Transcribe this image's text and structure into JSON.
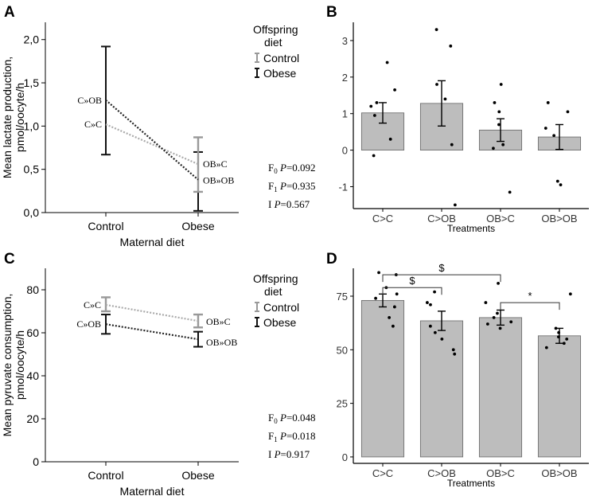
{
  "colors": {
    "control": "#999999",
    "obese": "#111111",
    "bar_fill": "#bdbdbd",
    "bar_stroke": "#666666",
    "axis": "#000000"
  },
  "chart_data": [
    {
      "panel": "A",
      "type": "line",
      "ylabel": "Mean lactate production, pmol/oocyte/h",
      "xlabel": "Maternal diet",
      "categories": [
        "Control",
        "Obese"
      ],
      "ylim": [
        0,
        2.2
      ],
      "yticks": [
        0,
        0.5,
        1,
        1.5,
        2
      ],
      "ytick_labels": [
        "0,0",
        "0,5",
        "1,0",
        "1,5",
        "2,0"
      ],
      "legend": {
        "title": "Offspring diet",
        "items": [
          "Control",
          "Obese"
        ]
      },
      "series": [
        {
          "name": "Control",
          "labels": [
            "C»C",
            "OB»C"
          ],
          "values": [
            1.02,
            0.56
          ]
        },
        {
          "name": "Obese",
          "labels": [
            "C»OB",
            "OB»OB"
          ],
          "values": [
            1.3,
            0.38
          ]
        }
      ],
      "error_bars": [
        {
          "group": "Control",
          "low": 0.67,
          "high": 1.92
        },
        {
          "group": "Obese",
          "low": 0.02,
          "high": 0.7
        },
        {
          "group": "Obese",
          "low": 0.24,
          "high": 0.87
        }
      ],
      "stats": [
        {
          "label": "F",
          "sub": "0",
          "text": "P=0.092"
        },
        {
          "label": "F",
          "sub": "1",
          "text": "P=0.935"
        },
        {
          "label": "I",
          "sub": "",
          "text": "P=0.567"
        }
      ]
    },
    {
      "panel": "B",
      "type": "bar",
      "xlabel": "Treatments",
      "ylabel": "",
      "categories": [
        "C>C",
        "C>OB",
        "OB>C",
        "OB>OB"
      ],
      "values": [
        1.02,
        1.28,
        0.55,
        0.36
      ],
      "errors": [
        0.28,
        0.62,
        0.31,
        0.34
      ],
      "ylim": [
        -1.6,
        3.5
      ],
      "yticks": [
        -1,
        0,
        1,
        2,
        3
      ],
      "ytick_labels": [
        "-1",
        "0",
        "1",
        "2",
        "3"
      ],
      "points": [
        [
          2.4,
          1.65,
          1.3,
          1.2,
          0.95,
          0.3,
          -0.15
        ],
        [
          3.3,
          2.85,
          1.8,
          1.4,
          0.15,
          -1.5
        ],
        [
          1.8,
          1.3,
          1.05,
          0.7,
          0.15,
          0.05,
          -1.15
        ],
        [
          1.3,
          1.05,
          0.6,
          0.4,
          -0.85,
          -0.95
        ]
      ]
    },
    {
      "panel": "C",
      "type": "line",
      "ylabel": "Mean pyruvate consumption, pmol/oocyte/h",
      "xlabel": "Maternal diet",
      "categories": [
        "Control",
        "Obese"
      ],
      "ylim": [
        0,
        90
      ],
      "yticks": [
        0,
        20,
        40,
        60,
        80
      ],
      "ytick_labels": [
        "0",
        "20",
        "40",
        "60",
        "80"
      ],
      "legend": {
        "title": "Offspring diet",
        "items": [
          "Control",
          "Obese"
        ]
      },
      "series": [
        {
          "name": "Control",
          "labels": [
            "C»C",
            "OB»C"
          ],
          "values": [
            73.0,
            65.5
          ]
        },
        {
          "name": "Obese",
          "labels": [
            "C»OB",
            "OB»OB"
          ],
          "values": [
            64.0,
            57.0
          ]
        }
      ],
      "error_bars": [
        {
          "group": "Control",
          "color": "control",
          "low": 70,
          "high": 76.5
        },
        {
          "group": "Control",
          "color": "obese",
          "low": 59.5,
          "high": 68.5
        },
        {
          "group": "Obese",
          "color": "control",
          "low": 62.5,
          "high": 68.5
        },
        {
          "group": "Obese",
          "color": "obese",
          "low": 53.5,
          "high": 60.5
        }
      ],
      "stats": [
        {
          "label": "F",
          "sub": "0",
          "text": "P=0.048"
        },
        {
          "label": "F",
          "sub": "1",
          "text": "P=0.018"
        },
        {
          "label": "I",
          "sub": "",
          "text": "P=0.917"
        }
      ]
    },
    {
      "panel": "D",
      "type": "bar",
      "xlabel": "Treatments",
      "ylabel": "",
      "categories": [
        "C>C",
        "C>OB",
        "OB>C",
        "OB>OB"
      ],
      "values": [
        73.0,
        63.5,
        65.0,
        56.5
      ],
      "errors": [
        3.0,
        4.5,
        3.5,
        3.5
      ],
      "ylim": [
        -3,
        88
      ],
      "yticks": [
        0,
        25,
        50,
        75
      ],
      "ytick_labels": [
        "0",
        "25",
        "50",
        "75"
      ],
      "points": [
        [
          86,
          85,
          79,
          76,
          74,
          70,
          65,
          61
        ],
        [
          77,
          72,
          71,
          61,
          58,
          55,
          50,
          48
        ],
        [
          81,
          72,
          67,
          65,
          63,
          62,
          60
        ],
        [
          76,
          60,
          58,
          56,
          55,
          53,
          51
        ]
      ],
      "significance": [
        {
          "from": 0,
          "to": 2,
          "label": "$",
          "y": 85
        },
        {
          "from": 0,
          "to": 1,
          "label": "$",
          "y": 79
        },
        {
          "from": 2,
          "to": 3,
          "label": "*",
          "y": 72
        }
      ]
    }
  ],
  "panel_letters": [
    "A",
    "B",
    "C",
    "D"
  ]
}
